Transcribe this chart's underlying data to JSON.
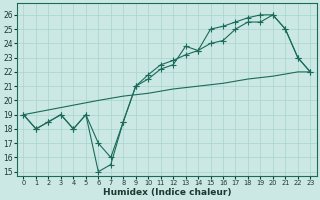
{
  "xlabel": "Humidex (Indice chaleur)",
  "bg_color": "#cce8e5",
  "grid_color": "#a8d4cf",
  "line_color": "#1a6b5a",
  "xlim": [
    -0.5,
    23.5
  ],
  "ylim": [
    14.7,
    26.8
  ],
  "yticks": [
    15,
    16,
    17,
    18,
    19,
    20,
    21,
    22,
    23,
    24,
    25,
    26
  ],
  "xticks": [
    0,
    1,
    2,
    3,
    4,
    5,
    6,
    7,
    8,
    9,
    10,
    11,
    12,
    13,
    14,
    15,
    16,
    17,
    18,
    19,
    20,
    21,
    22,
    23
  ],
  "line1_x": [
    0,
    1,
    2,
    3,
    4,
    5,
    6,
    7,
    8,
    9,
    10,
    11,
    12,
    13,
    14,
    15,
    16,
    17,
    18,
    19,
    20,
    21,
    22,
    23
  ],
  "line1_y": [
    19.0,
    18.0,
    18.5,
    19.0,
    18.0,
    19.0,
    17.0,
    16.0,
    18.5,
    21.0,
    21.5,
    22.2,
    22.5,
    23.8,
    23.5,
    24.0,
    24.2,
    25.0,
    25.5,
    25.5,
    26.0,
    25.0,
    23.0,
    22.0
  ],
  "line2_x": [
    0,
    1,
    2,
    3,
    4,
    5,
    6,
    7,
    8,
    9,
    10,
    11,
    12,
    13,
    14,
    15,
    16,
    17,
    18,
    19,
    20,
    21,
    22,
    23
  ],
  "line2_y": [
    19.0,
    18.0,
    18.5,
    19.0,
    18.0,
    19.0,
    15.0,
    15.5,
    18.5,
    21.0,
    21.8,
    22.5,
    22.8,
    23.2,
    23.5,
    25.0,
    25.2,
    25.5,
    25.8,
    26.0,
    26.0,
    25.0,
    23.0,
    22.0
  ],
  "line3_x": [
    0,
    3,
    6,
    8,
    10,
    12,
    14,
    16,
    18,
    20,
    22,
    23
  ],
  "line3_y": [
    19.0,
    19.5,
    20.0,
    20.3,
    20.5,
    20.8,
    21.0,
    21.2,
    21.5,
    21.7,
    22.0,
    22.0
  ]
}
